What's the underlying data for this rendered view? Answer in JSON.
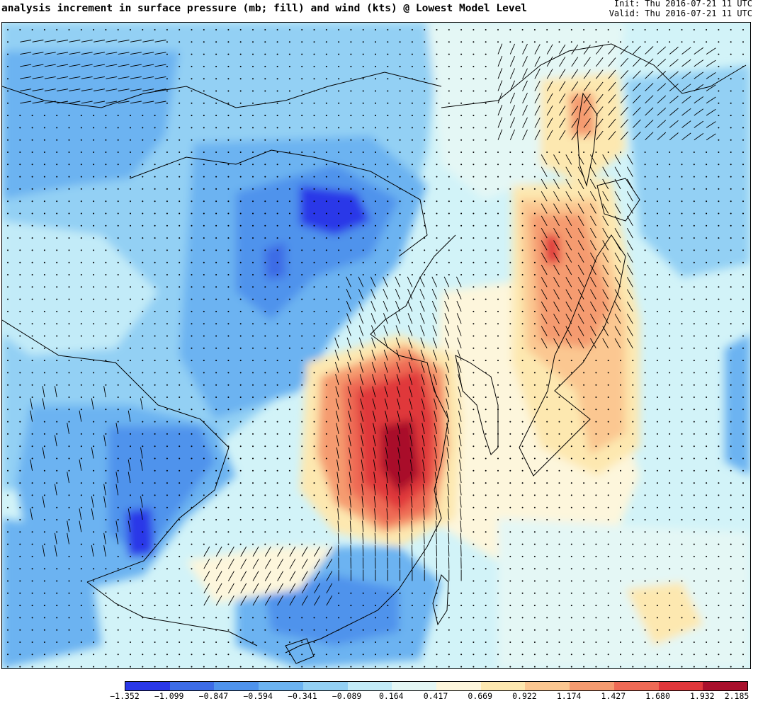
{
  "title": "analysis increment in surface pressure (mb; fill) and wind (kts) @ Lowest Model Level",
  "init_text": "Init: Thu 2016-07-21 11 UTC",
  "valid_text": "Valid: Thu 2016-07-21 11 UTC",
  "colorbar": {
    "ticks": [
      "−1.352",
      "−1.099",
      "−0.847",
      "−0.594",
      "−0.341",
      "−0.089",
      "0.164",
      "0.417",
      "0.669",
      "0.922",
      "1.174",
      "1.427",
      "1.680",
      "1.932",
      "2.185"
    ],
    "colors": [
      "#2a38e8",
      "#3d6ce6",
      "#4f93ec",
      "#6cb3f1",
      "#93d0f4",
      "#c2ebf8",
      "#e4f7f5",
      "#fdf6dc",
      "#fde8b0",
      "#fbc791",
      "#f59b70",
      "#ee6a55",
      "#e0373b",
      "#a9102c"
    ]
  },
  "map": {
    "background_color": "#d2f3f8",
    "coast_color": "#000000"
  }
}
